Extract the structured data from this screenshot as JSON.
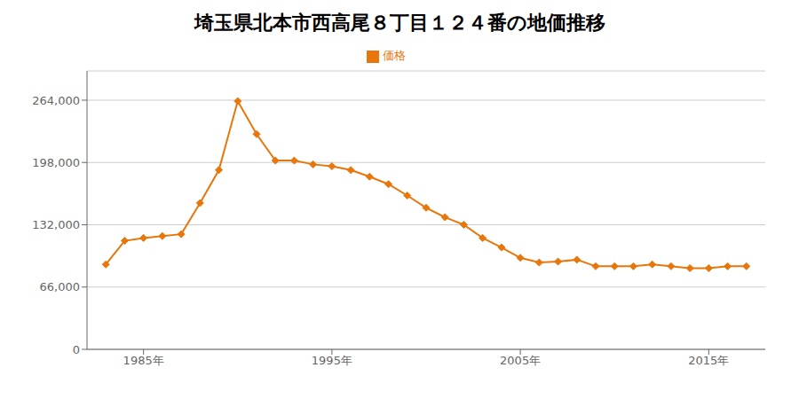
{
  "chart_data": {
    "type": "line",
    "title": "埼玉県北本市西高尾８丁目１２４番の地価推移",
    "x": [
      1983,
      1984,
      1985,
      1986,
      1987,
      1988,
      1989,
      1990,
      1991,
      1992,
      1993,
      1994,
      1995,
      1996,
      1997,
      1998,
      1999,
      2000,
      2001,
      2002,
      2003,
      2004,
      2005,
      2006,
      2007,
      2008,
      2009,
      2010,
      2011,
      2012,
      2013,
      2014,
      2015,
      2016,
      2017
    ],
    "series": [
      {
        "name": "価格",
        "color": "#e8760a",
        "marker": "diamond",
        "values": [
          90000,
          115000,
          118000,
          120000,
          122000,
          155000,
          190000,
          263000,
          228000,
          200000,
          200000,
          196000,
          194000,
          190000,
          183000,
          175000,
          163000,
          150000,
          140000,
          132000,
          118000,
          108000,
          97000,
          92000,
          93000,
          95000,
          88000,
          88000,
          88000,
          90000,
          88000,
          86000,
          86000,
          88000,
          88000
        ]
      }
    ],
    "xlim": [
      1982,
      2018
    ],
    "xticks": [
      {
        "value": 1985,
        "label": "1985年"
      },
      {
        "value": 1995,
        "label": "1995年"
      },
      {
        "value": 2005,
        "label": "2005年"
      },
      {
        "value": 2015,
        "label": "2015年"
      }
    ],
    "ylim": [
      0,
      295000
    ],
    "yticks": [
      0,
      {
        "value": 66000,
        "label": "66,000"
      },
      {
        "value": 132000,
        "label": "132,000"
      },
      {
        "value": 198000,
        "label": "198,000"
      },
      {
        "value": 264000,
        "label": "264,000"
      }
    ],
    "grid": true,
    "legend": "top"
  }
}
